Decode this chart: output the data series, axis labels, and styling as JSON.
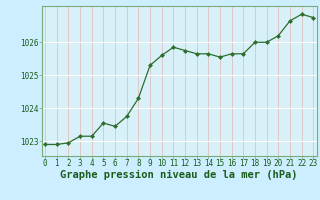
{
  "x": [
    0,
    1,
    2,
    3,
    4,
    5,
    6,
    7,
    8,
    9,
    10,
    11,
    12,
    13,
    14,
    15,
    16,
    17,
    18,
    19,
    20,
    21,
    22,
    23
  ],
  "y": [
    1022.9,
    1022.9,
    1022.95,
    1023.15,
    1023.15,
    1023.55,
    1023.45,
    1023.75,
    1024.3,
    1025.3,
    1025.6,
    1025.85,
    1025.75,
    1025.65,
    1025.65,
    1025.55,
    1025.65,
    1025.65,
    1026.0,
    1026.0,
    1026.2,
    1026.65,
    1026.85,
    1026.75
  ],
  "line_color": "#2d6e2d",
  "marker": "D",
  "marker_size": 2.0,
  "linewidth": 0.9,
  "bg_color": "#cceeff",
  "plot_bg_color": "#d8f0f8",
  "grid_color_h": "#ffffff",
  "grid_color_v": "#ddc0c0",
  "title": "Graphe pression niveau de la mer (hPa)",
  "title_fontsize": 7.5,
  "title_color": "#1a5c1a",
  "yticks": [
    1023,
    1024,
    1025,
    1026
  ],
  "xticks": [
    0,
    1,
    2,
    3,
    4,
    5,
    6,
    7,
    8,
    9,
    10,
    11,
    12,
    13,
    14,
    15,
    16,
    17,
    18,
    19,
    20,
    21,
    22,
    23
  ],
  "ylim": [
    1022.55,
    1027.1
  ],
  "xlim": [
    -0.3,
    23.3
  ],
  "tick_fontsize": 5.5,
  "spine_color": "#7aaa7a",
  "bottom_bar_color": "#2d6e2d",
  "bottom_bar_height": 0.12
}
